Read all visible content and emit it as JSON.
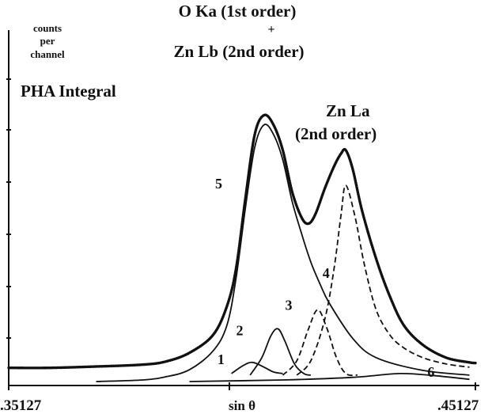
{
  "chart_data": {
    "type": "line",
    "title_lines": [
      "O Ka (1st order)",
      "+",
      "Zn Lb (2nd order)"
    ],
    "ylabel_lines": [
      "counts",
      "per",
      "channel"
    ],
    "xlabel": "sin θ",
    "x_ticks": [
      ".35127",
      ".45127"
    ],
    "annotations": {
      "pha": "PHA Integral",
      "zn_la_1": "Zn La",
      "zn_la_2": "(2nd order)"
    },
    "xlim": [
      0.35127,
      0.45127
    ],
    "ylim": [
      0,
      100
    ],
    "series": [
      {
        "name": "5",
        "style": "solid",
        "points": [
          [
            0.37,
            0.5
          ],
          [
            0.38,
            1.0
          ],
          [
            0.385,
            2.0
          ],
          [
            0.39,
            4.2
          ],
          [
            0.395,
            10
          ],
          [
            0.398,
            18
          ],
          [
            0.4,
            33
          ],
          [
            0.402,
            55
          ],
          [
            0.404,
            74
          ],
          [
            0.406,
            81
          ],
          [
            0.408,
            78
          ],
          [
            0.41,
            70
          ],
          [
            0.412,
            57
          ],
          [
            0.414,
            47
          ],
          [
            0.416,
            38
          ],
          [
            0.418,
            31
          ],
          [
            0.42,
            25
          ],
          [
            0.425,
            14
          ],
          [
            0.43,
            8
          ],
          [
            0.44,
            4
          ],
          [
            0.45,
            2.5
          ]
        ]
      },
      {
        "name": "1",
        "style": "solid",
        "points": [
          [
            0.399,
            3.0
          ],
          [
            0.4015,
            5.5
          ],
          [
            0.4035,
            6.5
          ],
          [
            0.406,
            5.0
          ],
          [
            0.408,
            3.5
          ],
          [
            0.41,
            3.0
          ]
        ]
      },
      {
        "name": "2",
        "style": "solid",
        "points": [
          [
            0.403,
            2.5
          ],
          [
            0.4055,
            8
          ],
          [
            0.4075,
            15
          ],
          [
            0.409,
            17
          ],
          [
            0.4105,
            13
          ],
          [
            0.4125,
            6
          ],
          [
            0.4145,
            3
          ],
          [
            0.416,
            2.5
          ]
        ]
      },
      {
        "name": "3",
        "style": "dashed",
        "points": [
          [
            0.41,
            2.5
          ],
          [
            0.413,
            7
          ],
          [
            0.4155,
            17
          ],
          [
            0.4175,
            23
          ],
          [
            0.4195,
            17
          ],
          [
            0.4215,
            8
          ],
          [
            0.4235,
            3
          ],
          [
            0.426,
            2.5
          ]
        ]
      },
      {
        "name": "4",
        "style": "dashed",
        "points": [
          [
            0.413,
            2.5
          ],
          [
            0.416,
            7
          ],
          [
            0.419,
            20
          ],
          [
            0.421,
            36
          ],
          [
            0.4225,
            53
          ],
          [
            0.4235,
            62
          ],
          [
            0.4255,
            52
          ],
          [
            0.4275,
            37
          ],
          [
            0.43,
            23
          ],
          [
            0.433,
            15
          ],
          [
            0.436,
            11
          ],
          [
            0.44,
            8
          ],
          [
            0.445,
            6
          ],
          [
            0.45,
            5
          ]
        ]
      },
      {
        "name": "6",
        "style": "solid",
        "points": [
          [
            0.39,
            0.5
          ],
          [
            0.41,
            1.0
          ],
          [
            0.425,
            1.8
          ],
          [
            0.435,
            3.0
          ],
          [
            0.442,
            2.4
          ],
          [
            0.45,
            1.2
          ]
        ]
      },
      {
        "name": "",
        "style": "dotted",
        "points": [
          [
            0.35127,
            4.8
          ],
          [
            0.36,
            4.8
          ],
          [
            0.37,
            5.2
          ],
          [
            0.38,
            5.8
          ],
          [
            0.385,
            6.8
          ],
          [
            0.39,
            9.5
          ],
          [
            0.395,
            15
          ],
          [
            0.398,
            24
          ],
          [
            0.4,
            36
          ],
          [
            0.402,
            58
          ],
          [
            0.404,
            78
          ],
          [
            0.406,
            84
          ],
          [
            0.408,
            81
          ],
          [
            0.41,
            73
          ],
          [
            0.412,
            60
          ],
          [
            0.414,
            52
          ],
          [
            0.4155,
            50
          ],
          [
            0.417,
            53
          ],
          [
            0.419,
            61
          ],
          [
            0.421,
            68
          ],
          [
            0.4225,
            72
          ],
          [
            0.4235,
            73
          ],
          [
            0.425,
            67
          ],
          [
            0.427,
            54
          ],
          [
            0.43,
            39
          ],
          [
            0.433,
            27
          ],
          [
            0.436,
            18
          ],
          [
            0.44,
            12
          ],
          [
            0.445,
            8
          ],
          [
            0.45,
            6.5
          ],
          [
            0.45127,
            6.3
          ]
        ]
      }
    ],
    "point_labels": [
      {
        "text": "1",
        "x": 0.396,
        "y": 6
      },
      {
        "text": "2",
        "x": 0.4,
        "y": 15
      },
      {
        "text": "3",
        "x": 0.4105,
        "y": 23
      },
      {
        "text": "4",
        "x": 0.4185,
        "y": 33
      },
      {
        "text": "5",
        "x": 0.3955,
        "y": 61
      },
      {
        "text": "6",
        "x": 0.441,
        "y": 2
      }
    ],
    "colors": {
      "ink": "#111111"
    }
  }
}
